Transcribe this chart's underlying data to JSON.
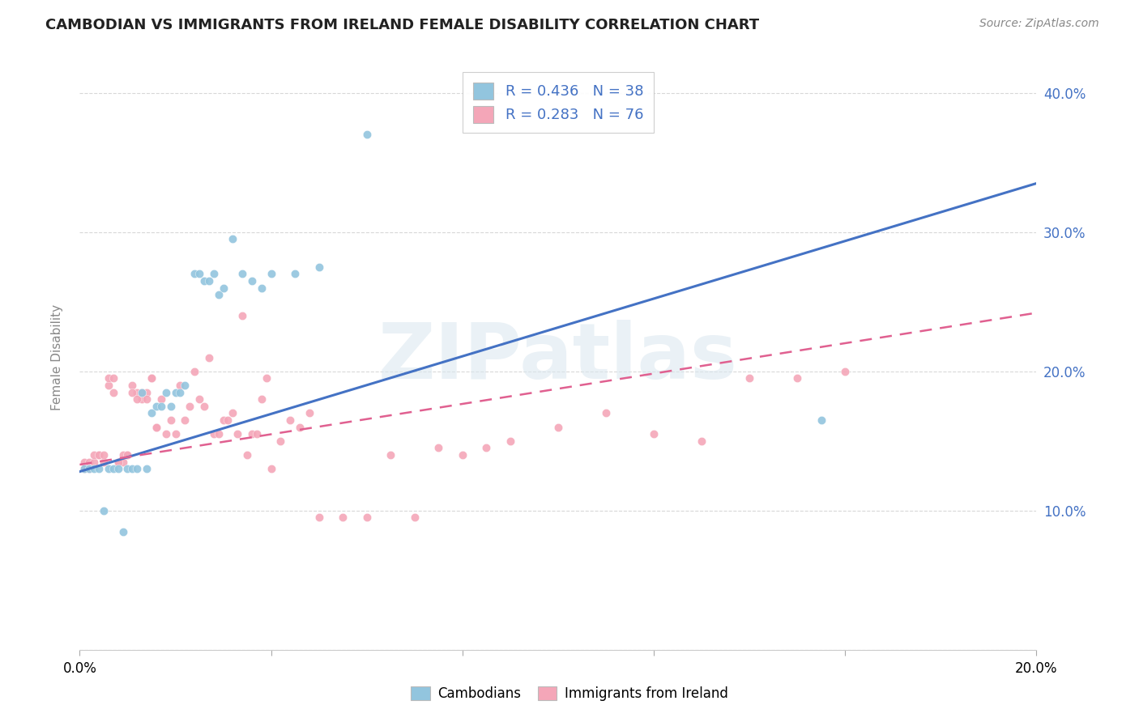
{
  "title": "CAMBODIAN VS IMMIGRANTS FROM IRELAND FEMALE DISABILITY CORRELATION CHART",
  "source": "Source: ZipAtlas.com",
  "ylabel": "Female Disability",
  "xlim": [
    0.0,
    0.2
  ],
  "ylim": [
    0.0,
    0.42
  ],
  "cambodian_color": "#92c5de",
  "ireland_color": "#f4a6b8",
  "cambodian_R": 0.436,
  "cambodian_N": 38,
  "ireland_R": 0.283,
  "ireland_N": 76,
  "cambodian_line_color": "#4472c4",
  "ireland_line_color": "#e06090",
  "watermark": "ZIPatlas",
  "background_color": "#ffffff",
  "grid_color": "#d8d8d8",
  "cambodian_scatter_x": [
    0.001,
    0.002,
    0.003,
    0.004,
    0.005,
    0.006,
    0.007,
    0.008,
    0.009,
    0.01,
    0.011,
    0.012,
    0.013,
    0.014,
    0.015,
    0.016,
    0.017,
    0.018,
    0.019,
    0.02,
    0.021,
    0.022,
    0.024,
    0.025,
    0.026,
    0.027,
    0.028,
    0.029,
    0.03,
    0.032,
    0.034,
    0.036,
    0.038,
    0.04,
    0.045,
    0.05,
    0.155,
    0.06
  ],
  "cambodian_scatter_y": [
    0.13,
    0.13,
    0.13,
    0.13,
    0.1,
    0.13,
    0.13,
    0.13,
    0.085,
    0.13,
    0.13,
    0.13,
    0.185,
    0.13,
    0.17,
    0.175,
    0.175,
    0.185,
    0.175,
    0.185,
    0.185,
    0.19,
    0.27,
    0.27,
    0.265,
    0.265,
    0.27,
    0.255,
    0.26,
    0.295,
    0.27,
    0.265,
    0.26,
    0.27,
    0.27,
    0.275,
    0.165,
    0.37
  ],
  "ireland_scatter_x": [
    0.001,
    0.002,
    0.003,
    0.004,
    0.005,
    0.006,
    0.007,
    0.008,
    0.009,
    0.01,
    0.011,
    0.012,
    0.013,
    0.014,
    0.015,
    0.016,
    0.017,
    0.018,
    0.019,
    0.02,
    0.021,
    0.022,
    0.023,
    0.024,
    0.025,
    0.026,
    0.027,
    0.028,
    0.029,
    0.03,
    0.031,
    0.032,
    0.033,
    0.034,
    0.035,
    0.036,
    0.037,
    0.038,
    0.039,
    0.04,
    0.042,
    0.044,
    0.046,
    0.048,
    0.05,
    0.055,
    0.06,
    0.065,
    0.07,
    0.075,
    0.08,
    0.085,
    0.09,
    0.1,
    0.11,
    0.12,
    0.13,
    0.14,
    0.15,
    0.16,
    0.001,
    0.002,
    0.003,
    0.004,
    0.005,
    0.006,
    0.007,
    0.008,
    0.009,
    0.01,
    0.011,
    0.012,
    0.013,
    0.014,
    0.015,
    0.016
  ],
  "ireland_scatter_y": [
    0.135,
    0.135,
    0.135,
    0.14,
    0.135,
    0.19,
    0.185,
    0.135,
    0.135,
    0.14,
    0.19,
    0.185,
    0.18,
    0.185,
    0.195,
    0.16,
    0.18,
    0.155,
    0.165,
    0.155,
    0.19,
    0.165,
    0.175,
    0.2,
    0.18,
    0.175,
    0.21,
    0.155,
    0.155,
    0.165,
    0.165,
    0.17,
    0.155,
    0.24,
    0.14,
    0.155,
    0.155,
    0.18,
    0.195,
    0.13,
    0.15,
    0.165,
    0.16,
    0.17,
    0.095,
    0.095,
    0.095,
    0.14,
    0.095,
    0.145,
    0.14,
    0.145,
    0.15,
    0.16,
    0.17,
    0.155,
    0.15,
    0.195,
    0.195,
    0.2,
    0.13,
    0.13,
    0.14,
    0.14,
    0.14,
    0.195,
    0.195,
    0.135,
    0.14,
    0.14,
    0.185,
    0.18,
    0.185,
    0.18,
    0.195,
    0.16
  ]
}
